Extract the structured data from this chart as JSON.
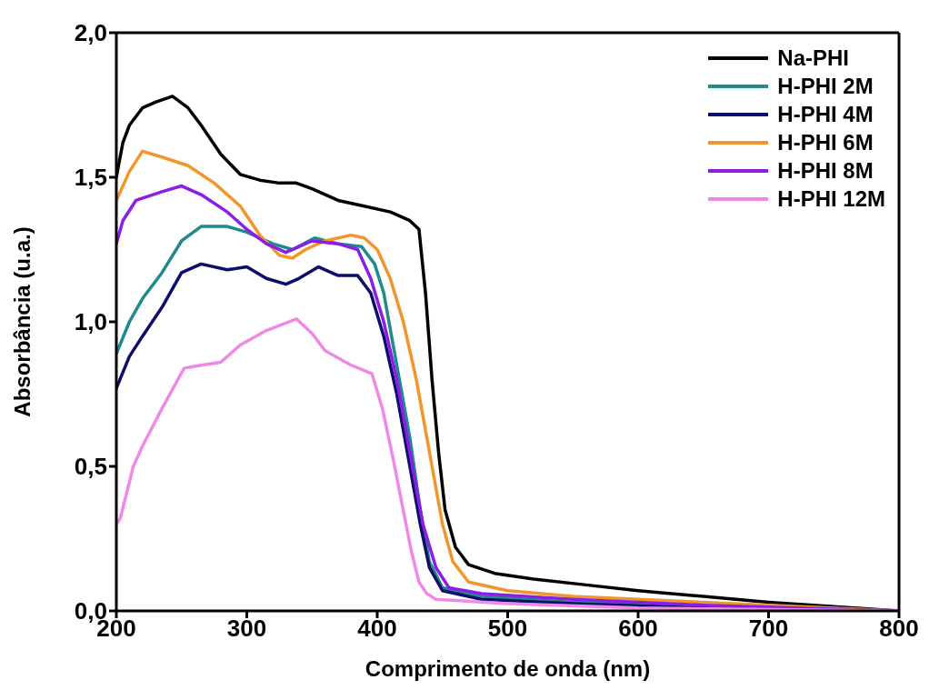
{
  "chart_data": {
    "type": "line",
    "xlabel": "Comprimento de onda (nm)",
    "ylabel": "Absorbância (u.a.)",
    "xlim": [
      200,
      800
    ],
    "xticks": [
      200,
      300,
      400,
      500,
      600,
      700,
      800
    ],
    "ylim": [
      0,
      2
    ],
    "yticks": [
      {
        "value": 0,
        "label": "0,0"
      },
      {
        "value": 0.5,
        "label": "0,5"
      },
      {
        "value": 1,
        "label": "1,0"
      },
      {
        "value": 1.5,
        "label": "1,5"
      },
      {
        "value": 2,
        "label": "2,0"
      }
    ],
    "legend": "top right",
    "marker": "none",
    "line_style": "solid",
    "series": [
      {
        "name": "Na-PHI",
        "color": "#000000",
        "x": [
          200,
          205,
          210,
          220,
          230,
          243,
          255,
          265,
          280,
          295,
          310,
          325,
          338,
          350,
          370,
          390,
          410,
          425,
          432,
          437,
          442,
          447,
          452,
          460,
          470,
          490,
          520,
          560,
          600,
          650,
          700,
          750,
          800
        ],
        "values": [
          1.5,
          1.62,
          1.68,
          1.74,
          1.76,
          1.78,
          1.74,
          1.68,
          1.58,
          1.51,
          1.49,
          1.48,
          1.48,
          1.46,
          1.42,
          1.4,
          1.38,
          1.35,
          1.32,
          1.1,
          0.8,
          0.55,
          0.35,
          0.22,
          0.16,
          0.13,
          0.11,
          0.09,
          0.07,
          0.05,
          0.03,
          0.015,
          0.0
        ]
      },
      {
        "name": "H-PHI 2M",
        "color": "#1f8a8a",
        "x": [
          200,
          210,
          220,
          235,
          250,
          265,
          285,
          300,
          320,
          335,
          352,
          370,
          388,
          398,
          405,
          415,
          425,
          433,
          440,
          450,
          480,
          550,
          650,
          800
        ],
        "values": [
          0.89,
          1.0,
          1.08,
          1.17,
          1.28,
          1.33,
          1.33,
          1.31,
          1.27,
          1.25,
          1.29,
          1.27,
          1.26,
          1.2,
          1.1,
          0.85,
          0.6,
          0.35,
          0.17,
          0.08,
          0.05,
          0.03,
          0.015,
          0.0
        ]
      },
      {
        "name": "H-PHI 4M",
        "color": "#0d0d6b",
        "x": [
          200,
          210,
          220,
          235,
          250,
          265,
          285,
          300,
          315,
          330,
          340,
          355,
          370,
          385,
          395,
          405,
          415,
          425,
          433,
          440,
          450,
          480,
          550,
          650,
          800
        ],
        "values": [
          0.77,
          0.88,
          0.95,
          1.05,
          1.17,
          1.2,
          1.18,
          1.19,
          1.15,
          1.13,
          1.15,
          1.19,
          1.16,
          1.16,
          1.1,
          0.95,
          0.75,
          0.5,
          0.3,
          0.15,
          0.07,
          0.04,
          0.025,
          0.01,
          0.0
        ]
      },
      {
        "name": "H-PHI 6M",
        "color": "#f0962a",
        "x": [
          200,
          210,
          220,
          235,
          255,
          275,
          295,
          310,
          325,
          335,
          345,
          360,
          380,
          390,
          400,
          410,
          420,
          430,
          440,
          450,
          458,
          470,
          500,
          550,
          600,
          700,
          800
        ],
        "values": [
          1.42,
          1.52,
          1.59,
          1.57,
          1.54,
          1.48,
          1.4,
          1.3,
          1.23,
          1.22,
          1.25,
          1.28,
          1.3,
          1.29,
          1.25,
          1.15,
          1.0,
          0.8,
          0.55,
          0.3,
          0.17,
          0.1,
          0.07,
          0.05,
          0.04,
          0.02,
          0.0
        ]
      },
      {
        "name": "H-PHI 8M",
        "color": "#8a1ee6",
        "x": [
          200,
          205,
          215,
          235,
          250,
          265,
          285,
          300,
          315,
          330,
          340,
          350,
          370,
          385,
          395,
          405,
          415,
          425,
          435,
          445,
          455,
          480,
          550,
          650,
          800
        ],
        "values": [
          1.27,
          1.35,
          1.42,
          1.45,
          1.47,
          1.44,
          1.38,
          1.32,
          1.27,
          1.24,
          1.26,
          1.28,
          1.27,
          1.25,
          1.15,
          1.0,
          0.8,
          0.55,
          0.3,
          0.15,
          0.08,
          0.06,
          0.04,
          0.02,
          0.0
        ]
      },
      {
        "name": "H-PHI 12M",
        "color": "#ee8ae6",
        "x": [
          200,
          203,
          213,
          220,
          235,
          252,
          265,
          280,
          295,
          315,
          338,
          350,
          360,
          380,
          396,
          404,
          412,
          419,
          426,
          432,
          438,
          445,
          500,
          600,
          800
        ],
        "values": [
          0.3,
          0.32,
          0.5,
          0.57,
          0.7,
          0.84,
          0.85,
          0.86,
          0.92,
          0.97,
          1.01,
          0.96,
          0.9,
          0.85,
          0.82,
          0.7,
          0.53,
          0.37,
          0.21,
          0.1,
          0.06,
          0.04,
          0.025,
          0.01,
          0.0
        ]
      }
    ]
  }
}
